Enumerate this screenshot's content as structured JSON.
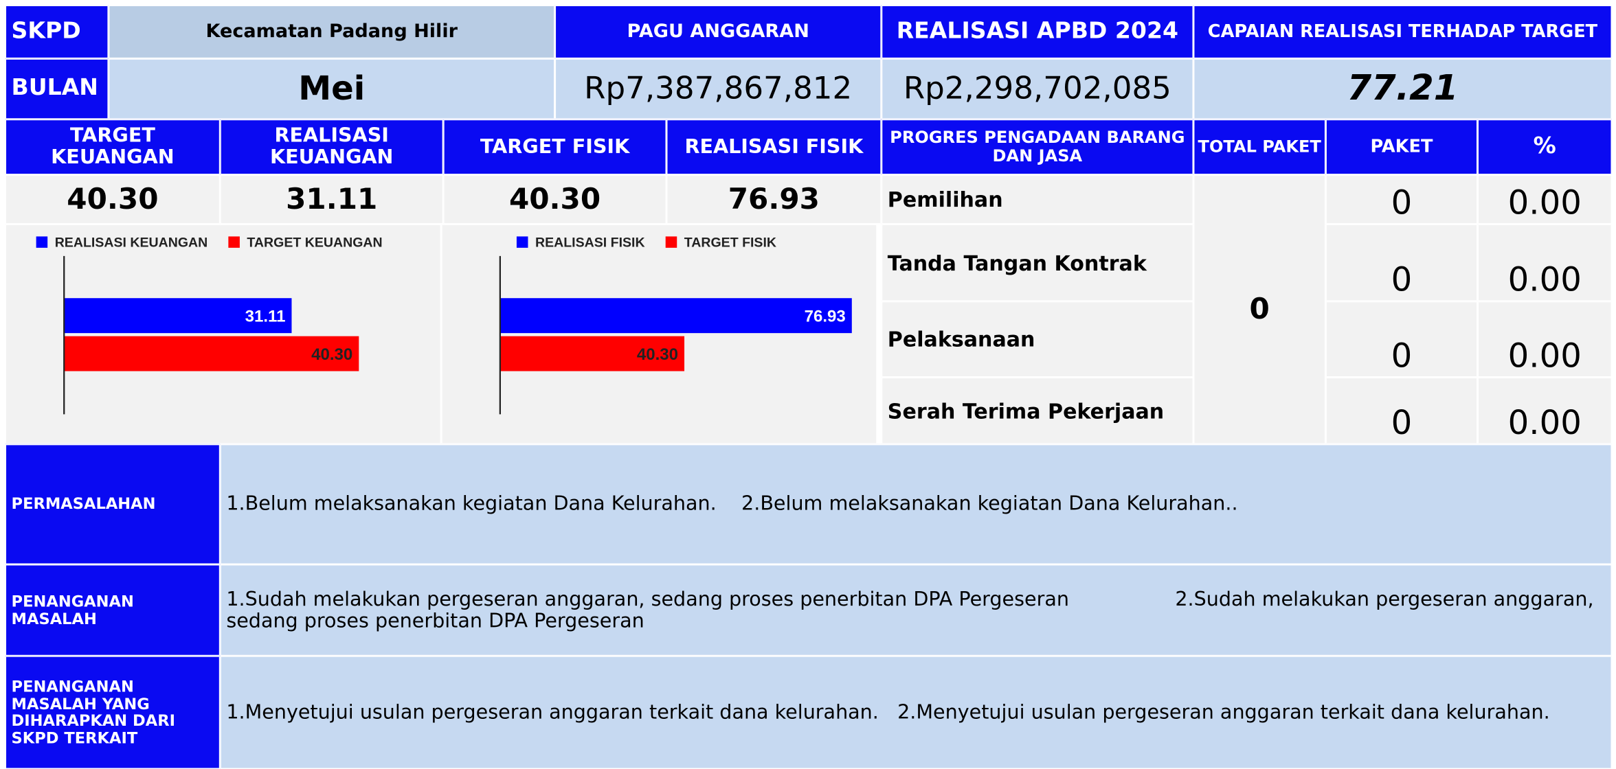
{
  "header": {
    "skpd_label": "SKPD",
    "skpd": "Kecamatan Padang Hilir",
    "bulan_label": "BULAN",
    "bulan": "Mei",
    "pagu_label": "PAGU ANGGARAN",
    "pagu": "Rp7,387,867,812",
    "realisasi_label": "REALISASI APBD 2024",
    "realisasi": "Rp2,298,702,085",
    "capaian_label": "CAPAIAN REALISASI TERHADAP TARGET",
    "capaian": "77.21"
  },
  "summary": {
    "headers": [
      "TARGET KEUANGAN",
      "REALISASI KEUANGAN",
      "TARGET FISIK",
      "REALISASI FISIK"
    ],
    "values": [
      "40.30",
      "31.11",
      "40.30",
      "76.93"
    ]
  },
  "procurement": {
    "headers": [
      "PROGRES PENGADAAN BARANG DAN JASA",
      "TOTAL PAKET",
      "PAKET",
      "%"
    ],
    "total": "0",
    "rows": [
      [
        "Pemilihan",
        "0",
        "0.00"
      ],
      [
        "Tanda Tangan Kontrak",
        "0",
        "0.00"
      ],
      [
        "Pelaksanaan",
        "0",
        "0.00"
      ],
      [
        "Serah Terima Pekerjaan",
        "0",
        "0.00"
      ]
    ]
  },
  "charts": [
    {
      "type": "hbar",
      "xlim": [
        0,
        50
      ],
      "series": [
        {
          "name": "REALISASI KEUANGAN",
          "color": "#0000ff",
          "values": [
            31.11
          ]
        },
        {
          "name": "TARGET KEUANGAN",
          "color": "#ff0000",
          "values": [
            40.3
          ],
          "value_labels": [
            "40.30"
          ]
        }
      ]
    },
    {
      "type": "hbar",
      "xlim": [
        0,
        80
      ],
      "series": [
        {
          "name": "REALISASI FISIK",
          "color": "#0000ff",
          "values": [
            76.93
          ]
        },
        {
          "name": "TARGET FISIK",
          "color": "#ff0000",
          "values": [
            40.3
          ],
          "value_labels": [
            "40.30"
          ]
        }
      ]
    }
  ],
  "notes": [
    {
      "label": "PERMASALAHAN",
      "text": "1.Belum melaksanakan kegiatan Dana Kelurahan.    2.Belum melaksanakan kegiatan Dana Kelurahan.."
    },
    {
      "label": "PENANGANAN MASALAH",
      "text": "1.Sudah melakukan pergeseran anggaran, sedang proses penerbitan DPA Pergeseran                 2.Sudah melakukan pergeseran anggaran, sedang proses penerbitan DPA Pergeseran"
    },
    {
      "label": "PENANGANAN MASALAH YANG DIHARAPKAN DARI SKPD TERKAIT",
      "text": "1.Menyetujui usulan pergeseran anggaran terkait dana kelurahan.   2.Menyetujui usulan pergeseran anggaran terkait dana kelurahan."
    }
  ]
}
